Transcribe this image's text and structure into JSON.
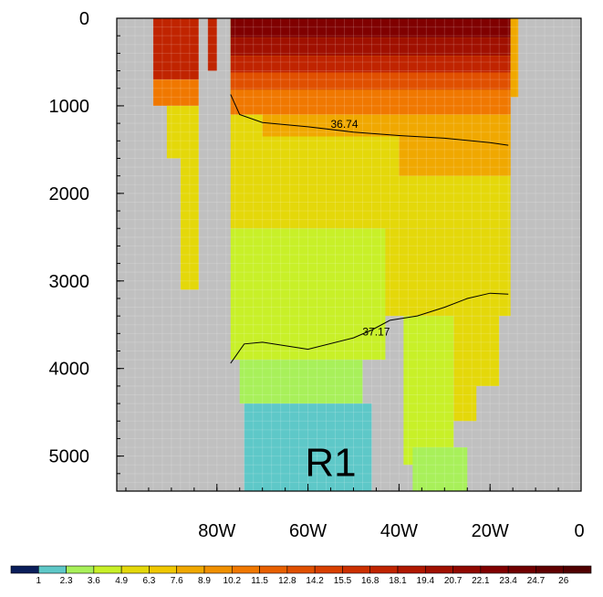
{
  "chart_data": {
    "type": "heatmap",
    "title": "",
    "xlabel": "",
    "ylabel": "",
    "x_ticks": [
      "80W",
      "60W",
      "40W",
      "20W",
      "0"
    ],
    "x_tick_values": [
      -80,
      -60,
      -40,
      -20,
      0
    ],
    "y_ticks": [
      "0",
      "1000",
      "2000",
      "3000",
      "4000",
      "5000"
    ],
    "y_tick_values": [
      0,
      1000,
      2000,
      3000,
      4000,
      5000
    ],
    "xlim": [
      -102,
      0
    ],
    "ylim": [
      5400,
      0
    ],
    "colorbar_levels": [
      "1",
      "2.3",
      "3.6",
      "4.9",
      "6.3",
      "7.6",
      "8.9",
      "10.2",
      "11.5",
      "12.8",
      "14.2",
      "15.5",
      "16.8",
      "18.1",
      "19.4",
      "20.7",
      "22.1",
      "23.4",
      "24.7",
      "26"
    ],
    "colorbar_colors": [
      "#0a1e5a",
      "#5ec8c8",
      "#a8f05a",
      "#c8f028",
      "#e4d80a",
      "#f0c800",
      "#f0a800",
      "#f09000",
      "#f07800",
      "#e86000",
      "#e05000",
      "#d84000",
      "#cc3000",
      "#c02400",
      "#b01800",
      "#a01000",
      "#900800",
      "#800000",
      "#700000",
      "#600000",
      "#500000"
    ],
    "contours": [
      {
        "label": "36.74",
        "points": [
          [
            -77,
            870
          ],
          [
            -75,
            1100
          ],
          [
            -70,
            1190
          ],
          [
            -60,
            1240
          ],
          [
            -50,
            1300
          ],
          [
            -40,
            1340
          ],
          [
            -30,
            1370
          ],
          [
            -20,
            1420
          ],
          [
            -16,
            1450
          ]
        ]
      },
      {
        "label": "37.17",
        "points": [
          [
            -77,
            3940
          ],
          [
            -74,
            3720
          ],
          [
            -70,
            3700
          ],
          [
            -60,
            3780
          ],
          [
            -50,
            3650
          ],
          [
            -46,
            3560
          ],
          [
            -42,
            3450
          ],
          [
            -36,
            3400
          ],
          [
            -30,
            3300
          ],
          [
            -25,
            3200
          ],
          [
            -20,
            3140
          ],
          [
            -16,
            3150
          ]
        ]
      }
    ],
    "region_label": "R1",
    "grid": true,
    "colorbar_position": "bottom"
  }
}
